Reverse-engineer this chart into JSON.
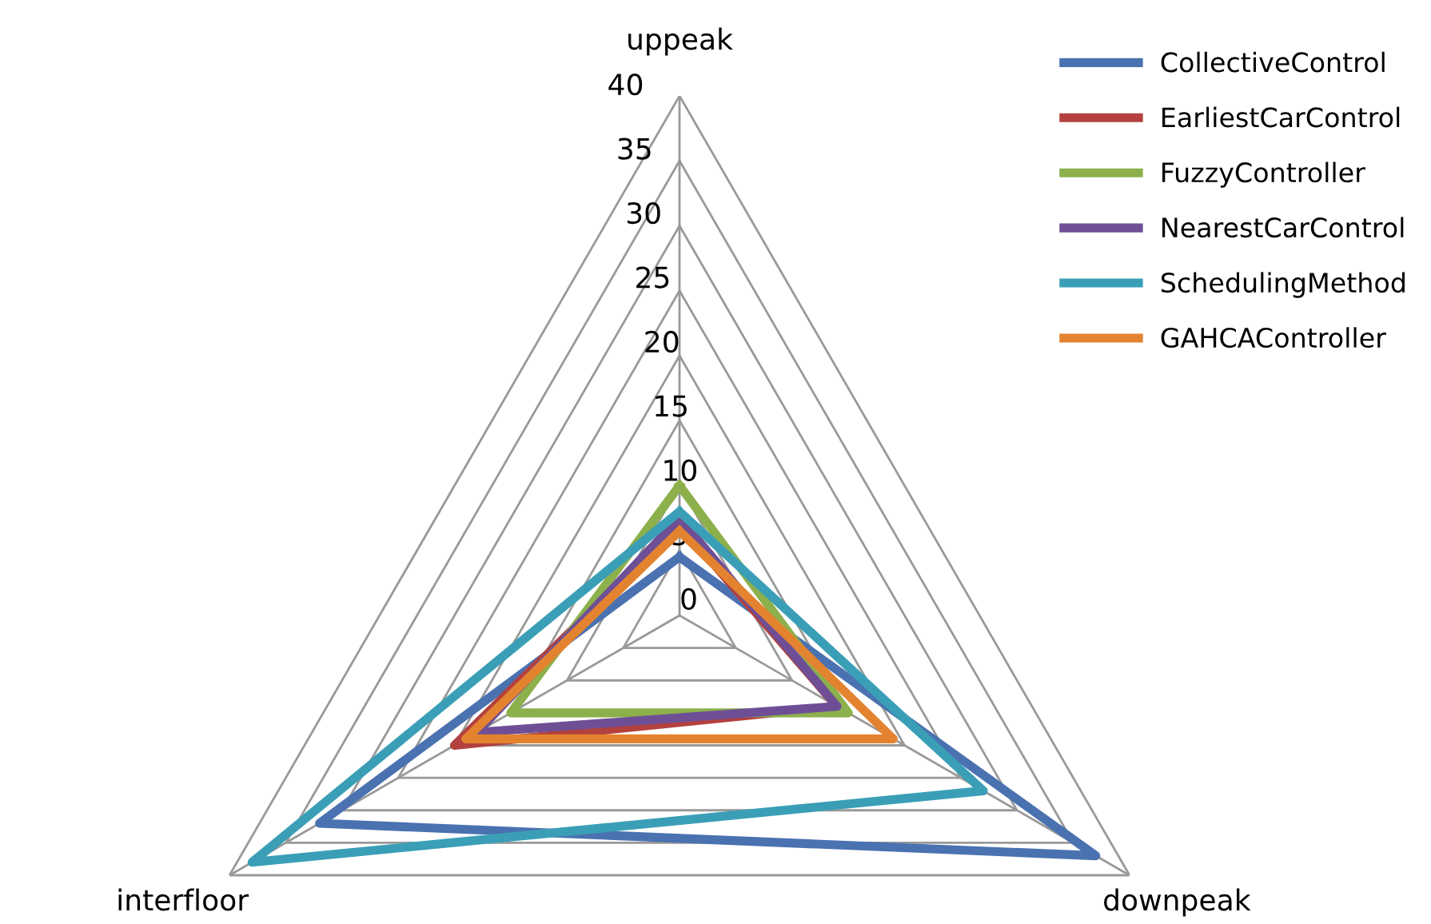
{
  "chart_data": {
    "type": "radar",
    "categories": [
      "uppeak",
      "downpeak",
      "interfloor"
    ],
    "ylim": [
      0,
      40
    ],
    "yticks": [
      0,
      5,
      10,
      15,
      20,
      25,
      30,
      35,
      40
    ],
    "grid": true,
    "legend": "top right",
    "series": [
      {
        "name": "CollectiveControl",
        "color": "#4a72b0",
        "values": [
          4.5,
          37,
          32
        ]
      },
      {
        "name": "EarliestCarControl",
        "color": "#b3413e",
        "values": [
          7,
          14,
          20
        ]
      },
      {
        "name": "FuzzyController",
        "color": "#8cb04c",
        "values": [
          10,
          15,
          15
        ]
      },
      {
        "name": "NearestCarControl",
        "color": "#6e4f96",
        "values": [
          7.5,
          14,
          18
        ]
      },
      {
        "name": "SchedulingMethod",
        "color": "#3a9fb6",
        "values": [
          8,
          27,
          38
        ]
      },
      {
        "name": "GAHCAController",
        "color": "#e4832f",
        "values": [
          6.5,
          19,
          19
        ]
      }
    ]
  }
}
